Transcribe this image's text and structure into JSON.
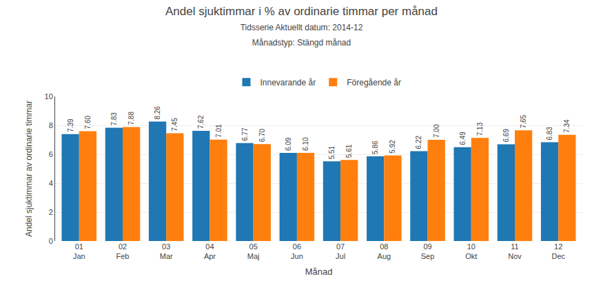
{
  "chart_data": {
    "type": "bar",
    "title": "Andel sjuktimmar i % av ordinarie timmar per månad",
    "subtitle": [
      "Tidsserie Aktuellt datum: 2014-12",
      "Månadstyp: Stängd månad"
    ],
    "xlabel": "Månad",
    "ylabel": "Andel sjuktimmar av ordinarie timmar",
    "categories": [
      "01\nJan",
      "02\nFeb",
      "03\nMar",
      "04\nApr",
      "05\nMaj",
      "06\nJun",
      "07\nJul",
      "08\nAug",
      "09\nSep",
      "10\nOkt",
      "11\nNov",
      "12\nDec"
    ],
    "series": [
      {
        "name": "Innevarande år",
        "values": [
          7.39,
          7.83,
          8.26,
          7.62,
          6.77,
          6.09,
          5.51,
          5.86,
          6.22,
          6.49,
          6.69,
          6.83
        ],
        "value_labels": [
          "7.39",
          "7.83",
          "8.26",
          "7.62",
          "6.77",
          "6.09",
          "5.51",
          "5.86",
          "6.22",
          "6.49",
          "6.69",
          "6.83"
        ]
      },
      {
        "name": "Föregående år",
        "values": [
          7.6,
          7.88,
          7.45,
          7.01,
          6.7,
          6.1,
          5.61,
          5.92,
          7.0,
          7.13,
          7.65,
          7.34
        ],
        "value_labels": [
          "7.60",
          "7.88",
          "7.45",
          "7.01",
          "6.70",
          "6.10",
          "5.61",
          "5.92",
          "7.00",
          "7.13",
          "7.65",
          "7.34"
        ]
      }
    ],
    "ylim": [
      0,
      10
    ],
    "yticks": [
      0,
      2,
      4,
      6,
      8,
      10
    ],
    "grid": true,
    "legend": "upper center",
    "data_labels": true
  }
}
